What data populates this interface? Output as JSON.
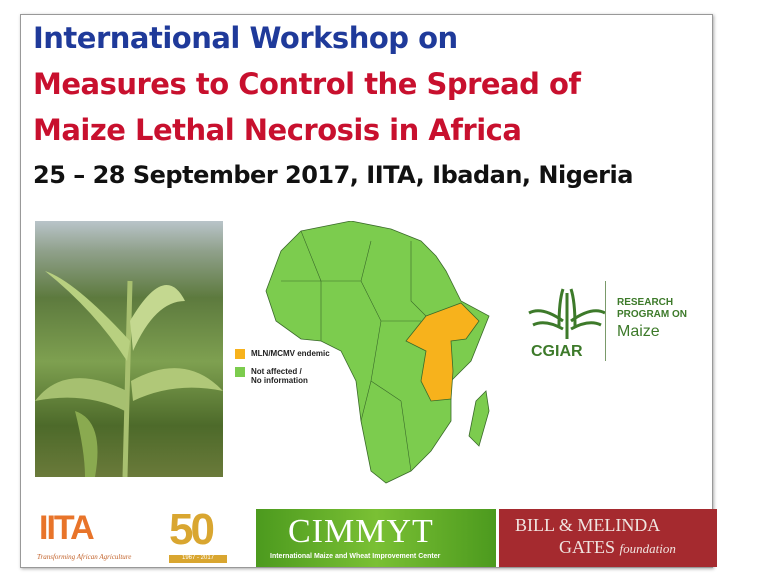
{
  "title": {
    "line1": "International Workshop on",
    "line2": "Measures to Control the Spread of",
    "line3": "Maize Lethal Necrosis in Africa",
    "subtitle": "25 – 28 September 2017, IITA, Ibadan, Nigeria"
  },
  "colors": {
    "title_blue": "#1f3a9a",
    "title_red": "#c8102e",
    "endemic": "#f7b21c",
    "not_affected": "#7ccc4e"
  },
  "legend": {
    "endemic": "MLN/MCMV endemic",
    "not_affected_1": "Not affected /",
    "not_affected_2": "No information"
  },
  "cgiar": {
    "name": "CGIAR",
    "rp1": "RESEARCH",
    "rp2": "PROGRAM ON",
    "maize": "Maize"
  },
  "logos": {
    "iita": "IITA",
    "iita_tagline": "Transforming African Agriculture",
    "fifty": "50",
    "fifty_years": "1967 - 2017",
    "cimmyt": "CIMMYT",
    "cimmyt_sub": "International Maize and Wheat Improvement Center",
    "gates_1": "BILL & MELINDA",
    "gates_2": "GATES",
    "gates_3": "foundation"
  }
}
